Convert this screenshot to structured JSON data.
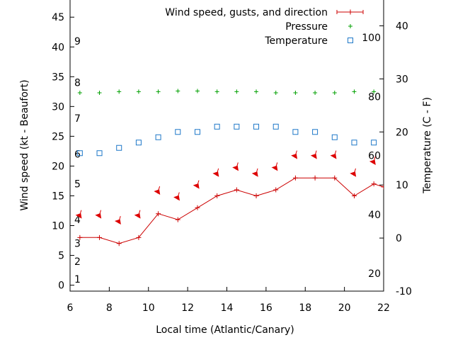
{
  "chart_data": {
    "type": "line",
    "xlabel": "Local time (Atlantic/Canary)",
    "ylabel_left": "Wind speed (kt - Beaufort)",
    "ylabel_right": "Temperature (C - F)",
    "xlim": [
      6,
      22
    ],
    "ylim_left": [
      -1,
      48
    ],
    "ylim_right": [
      -10,
      45
    ],
    "x_ticks": [
      "6",
      "8",
      "10",
      "12",
      "14",
      "16",
      "18",
      "20",
      "22"
    ],
    "y_ticks_left": [
      "0",
      "5",
      "10",
      "15",
      "20",
      "25",
      "30",
      "35",
      "40",
      "45"
    ],
    "y_ticks_right": [
      "-10",
      "0",
      "10",
      "20",
      "30",
      "40"
    ],
    "beaufort_labels": [
      {
        "label": "1",
        "value": 1
      },
      {
        "label": "2",
        "value": 4
      },
      {
        "label": "3",
        "value": 7
      },
      {
        "label": "4",
        "value": 11
      },
      {
        "label": "5",
        "value": 17
      },
      {
        "label": "6",
        "value": 22
      },
      {
        "label": "7",
        "value": 28
      },
      {
        "label": "8",
        "value": 34
      },
      {
        "label": "9",
        "value": 41
      }
    ],
    "fahrenheit_labels": [
      {
        "label": "20",
        "value": -6.67
      },
      {
        "label": "40",
        "value": 4.44
      },
      {
        "label": "60",
        "value": 15.56
      },
      {
        "label": "80",
        "value": 26.67
      },
      {
        "label": "100",
        "value": 37.78
      }
    ],
    "legend_position": "top-right",
    "series": [
      {
        "name": "Wind speed, gusts, and direction",
        "axis": "left",
        "marker": "plus-line",
        "color": "#cc0000",
        "x": [
          6.5,
          7.5,
          8.5,
          9.5,
          10.5,
          11.5,
          12.5,
          13.5,
          14.5,
          15.5,
          16.5,
          17.5,
          18.5,
          19.5,
          20.5,
          21.5,
          22
        ],
        "y": [
          8,
          8,
          7,
          8,
          12,
          11,
          13,
          15,
          16,
          15,
          16,
          18,
          18,
          18,
          15,
          17,
          16.5
        ]
      },
      {
        "name": "Pressure",
        "axis": "left",
        "marker": "plus",
        "color": "#00a000",
        "x": [
          6.5,
          7.5,
          8.5,
          9.5,
          10.5,
          11.5,
          12.5,
          13.5,
          14.5,
          15.5,
          16.5,
          17.5,
          18.5,
          19.5,
          20.5,
          21.5
        ],
        "y": [
          32.3,
          32.3,
          32.5,
          32.5,
          32.5,
          32.6,
          32.6,
          32.5,
          32.5,
          32.5,
          32.3,
          32.3,
          32.3,
          32.3,
          32.5,
          32.5
        ]
      },
      {
        "name": "Temperature",
        "axis": "right",
        "marker": "square",
        "color": "#1e78c8",
        "x": [
          6.5,
          7.5,
          8.5,
          9.5,
          10.5,
          11.5,
          12.5,
          13.5,
          14.5,
          15.5,
          16.5,
          17.5,
          18.5,
          19.5,
          20.5,
          21.5
        ],
        "y": [
          16,
          16,
          17,
          18,
          19,
          20,
          20,
          21,
          21,
          21,
          21,
          20,
          20,
          19,
          18,
          18
        ]
      }
    ],
    "wind_arrows": {
      "color": "#dd0000",
      "x": [
        6.5,
        7.5,
        8.5,
        9.5,
        10.5,
        11.5,
        12.5,
        13.5,
        14.5,
        15.5,
        16.5,
        17.5,
        18.5,
        19.5,
        20.5,
        21.5
      ],
      "y": [
        12,
        12,
        11,
        12,
        16,
        15,
        17,
        19,
        20,
        19,
        20,
        22,
        22,
        22,
        19,
        21
      ]
    }
  }
}
